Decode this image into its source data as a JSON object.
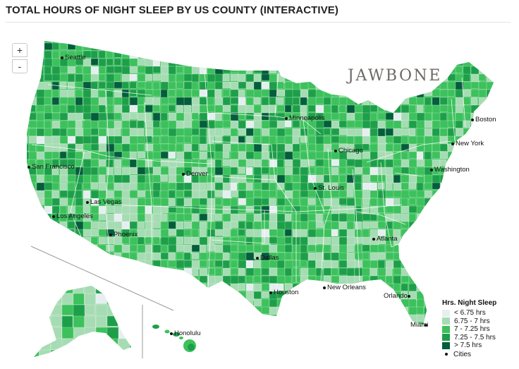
{
  "header": {
    "title": "TOTAL HOURS OF NIGHT SLEEP BY US COUNTY (INTERACTIVE)"
  },
  "controls": {
    "zoom_in_label": "+",
    "zoom_out_label": "-"
  },
  "brand": {
    "name": "JAWBONE"
  },
  "legend": {
    "title": "Hrs. Night Sleep",
    "items": [
      {
        "label": "< 6.75 hrs",
        "color": "#e6eff0"
      },
      {
        "label": "6.75 - 7 hrs",
        "color": "#a6dcb3"
      },
      {
        "label": "7 - 7.25 hrs",
        "color": "#3cc15c"
      },
      {
        "label": "7.25 - 7.5 hrs",
        "color": "#1d9f49"
      },
      {
        "label": "> 7.5 hrs",
        "color": "#045d3b"
      }
    ],
    "cities_label": "Cities"
  },
  "cities": [
    {
      "name": "Seattle"
    },
    {
      "name": "San Francisco"
    },
    {
      "name": "Las Vegas"
    },
    {
      "name": "Los Angeles"
    },
    {
      "name": "Phoenix"
    },
    {
      "name": "Denver"
    },
    {
      "name": "Minneapolis"
    },
    {
      "name": "Chicago"
    },
    {
      "name": "St. Louis"
    },
    {
      "name": "Dallas"
    },
    {
      "name": "Houston"
    },
    {
      "name": "New Orleans"
    },
    {
      "name": "Atlanta"
    },
    {
      "name": "Orlando"
    },
    {
      "name": "Miami"
    },
    {
      "name": "Washington"
    },
    {
      "name": "New York"
    },
    {
      "name": "Boston"
    },
    {
      "name": "Honolulu"
    }
  ]
}
